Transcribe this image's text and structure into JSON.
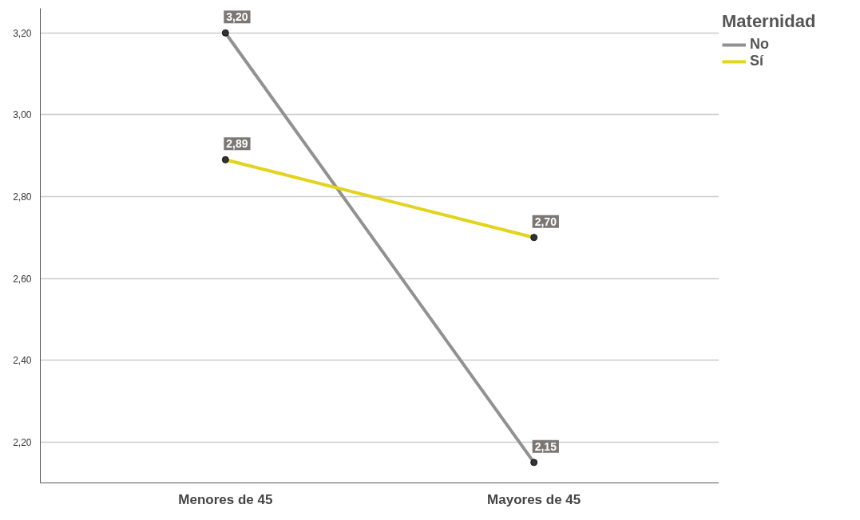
{
  "chart_data": {
    "type": "line",
    "legend_title": "Maternidad",
    "categories": [
      "Menores de 45",
      "Mayores de 45"
    ],
    "series": [
      {
        "name": "No",
        "color": "#939090",
        "values": [
          3.2,
          2.15
        ],
        "value_labels": [
          "3,20",
          "2,15"
        ]
      },
      {
        "name": "Sí",
        "color": "#e1d41b",
        "values": [
          2.89,
          2.7
        ],
        "value_labels": [
          "2,89",
          "2,70"
        ]
      }
    ],
    "ylim": [
      2.1,
      3.26
    ],
    "yticks": [
      {
        "value": 2.2,
        "label": "2,20"
      },
      {
        "value": 2.4,
        "label": "2,40"
      },
      {
        "value": 2.6,
        "label": "2,60"
      },
      {
        "value": 2.8,
        "label": "2,80"
      },
      {
        "value": 3.0,
        "label": "3,00"
      },
      {
        "value": 3.2,
        "label": "3,20"
      }
    ],
    "grid": "y",
    "legend": "top right",
    "marker": "circle",
    "line_style": "solid"
  }
}
